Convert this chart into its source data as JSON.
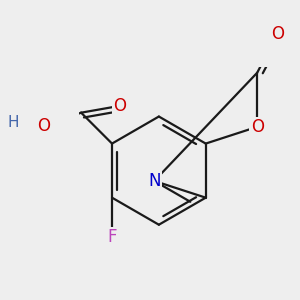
{
  "bg_color": "#eeeeee",
  "bond_color": "#1a1a1a",
  "bond_width": 1.6,
  "atom_colors": {
    "O": "#cc0000",
    "N": "#0000cc",
    "F": "#bb44bb",
    "C": "#1a1a1a",
    "H": "#4466aa"
  },
  "font_size": 12,
  "font_size_small": 11
}
